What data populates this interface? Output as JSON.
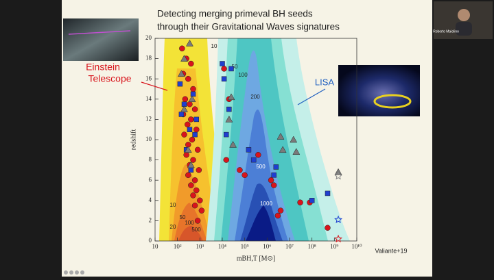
{
  "call": {
    "participant_name": "Roberto Maiolino"
  },
  "slide": {
    "title_lines": [
      "Detecting merging primeval BH seeds",
      "through their Gravitational Waves signatures"
    ],
    "et_label_lines": [
      "Einstein",
      "Telescope"
    ],
    "lisa_label": "LISA",
    "credit": "Valiante+19"
  },
  "chart_data": {
    "type": "scatter",
    "xlabel": "mBH,T [M⊙]",
    "ylabel": "redshift",
    "xscale": "log",
    "xlim": [
      10,
      10000000000
    ],
    "ylim": [
      0,
      20
    ],
    "xticks": [
      10,
      {
        "value": 100,
        "label": "10²"
      },
      {
        "value": 1000,
        "label": "10³"
      },
      {
        "value": 10000,
        "label": "10⁴"
      },
      {
        "value": 100000,
        "label": "10⁵"
      },
      {
        "value": 1000000,
        "label": "10⁶"
      },
      {
        "value": 10000000,
        "label": "10⁷"
      },
      {
        "value": 100000000,
        "label": "10⁸"
      },
      {
        "value": 1000000000,
        "label": "10⁹"
      },
      {
        "value": 10000000000,
        "label": "10¹⁰"
      }
    ],
    "yticks": [
      0,
      2,
      4,
      6,
      8,
      10,
      12,
      14,
      16,
      18,
      20
    ],
    "et_contour_labels": [
      10,
      20,
      50,
      100,
      500
    ],
    "lisa_contour_labels": [
      10,
      50,
      100,
      200,
      500,
      1000
    ],
    "series": [
      {
        "marker": "circle",
        "color": "#d8141c",
        "x": [
          160,
          250,
          400,
          180,
          300,
          500,
          220,
          350,
          600,
          180,
          400,
          280,
          700,
          200,
          450,
          300,
          800,
          250,
          500,
          350,
          900,
          300,
          600,
          400,
          700,
          500,
          1000,
          600,
          1200,
          800,
          12000,
          20000,
          15000,
          60000,
          100000,
          400000,
          1500000,
          2000000,
          4000000,
          3000000,
          30000000,
          80000000,
          500000000
        ],
        "values": [
          19,
          18,
          17.5,
          16.5,
          16,
          15,
          14,
          13.5,
          13,
          12.5,
          12,
          11.5,
          11,
          10.5,
          10,
          9.5,
          9,
          8.5,
          8,
          7.5,
          7,
          6.5,
          6,
          5.5,
          5,
          4.5,
          4,
          3.5,
          3,
          2,
          17,
          14,
          8,
          7,
          6.5,
          8.5,
          6,
          5.5,
          3,
          2.5,
          3.8,
          3.8,
          1.3
        ]
      },
      {
        "marker": "square",
        "color": "#1f3fd0",
        "x": [
          130,
          200,
          350,
          500,
          250,
          700,
          400,
          150,
          600,
          10000,
          12000,
          15000,
          20000,
          25000,
          150000,
          250000,
          2000000,
          2500000,
          100000000,
          500000000
        ],
        "values": [
          15.5,
          13.5,
          11,
          14.5,
          9,
          12,
          7,
          12.5,
          10.5,
          17.5,
          16,
          10.5,
          13,
          17,
          9,
          8,
          6.5,
          7.3,
          4,
          4.7
        ]
      },
      {
        "marker": "triangle",
        "color": "#7a7a7a",
        "x": [
          150,
          200,
          350,
          450,
          200,
          300,
          400,
          20000,
          25000,
          30000,
          4000000,
          5000000,
          15000000,
          20000000,
          1500000000
        ],
        "values": [
          16.5,
          18,
          19.5,
          14,
          13,
          9,
          7.5,
          12,
          14.2,
          9.5,
          10.3,
          9,
          10,
          8.8,
          6.8
        ]
      },
      {
        "marker": "star",
        "color": "#1f3fd0",
        "x": [
          1500000000
        ],
        "values": [
          2.1
        ]
      },
      {
        "marker": "star",
        "color": "#888888",
        "x": [
          1500000000
        ],
        "values": [
          6.4
        ]
      },
      {
        "marker": "star",
        "color": "#d8141c",
        "x": [
          1500000000
        ],
        "values": [
          0.2
        ]
      }
    ]
  }
}
